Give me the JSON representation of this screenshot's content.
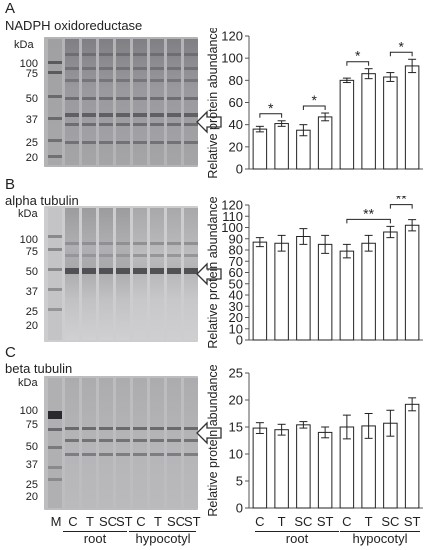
{
  "panels": [
    {
      "letter": "A",
      "protein": "NADPH oxidoreductase",
      "kda": "kDa",
      "markers": [
        "100",
        "75",
        "50",
        "37",
        "25",
        "20"
      ],
      "chart_data": {
        "type": "bar",
        "categories": [
          "C",
          "T",
          "SC",
          "ST",
          "C",
          "T",
          "SC",
          "ST"
        ],
        "values": [
          36,
          41,
          35,
          47,
          80,
          86,
          83,
          93
        ],
        "errors": [
          2.5,
          2.5,
          5,
          3.5,
          2,
          4.5,
          4,
          6
        ],
        "ylabel": "Relative protein abundance",
        "ylim": [
          0,
          120
        ],
        "yticks": [
          0,
          20,
          40,
          60,
          80,
          100,
          120
        ],
        "significance": [
          {
            "from": 0,
            "to": 1,
            "label": "*"
          },
          {
            "from": 2,
            "to": 3,
            "label": "*"
          },
          {
            "from": 4,
            "to": 5,
            "label": "*"
          },
          {
            "from": 6,
            "to": 7,
            "label": "*"
          }
        ]
      }
    },
    {
      "letter": "B",
      "protein": "alpha tubulin",
      "kda": "kDa",
      "markers": [
        "100",
        "75",
        "50",
        "37",
        "25",
        "20"
      ],
      "chart_data": {
        "type": "bar",
        "categories": [
          "C",
          "T",
          "SC",
          "ST",
          "C",
          "T",
          "SC",
          "ST"
        ],
        "values": [
          87,
          86,
          92,
          85,
          79,
          86,
          96,
          102
        ],
        "errors": [
          4,
          7,
          7,
          8,
          6,
          7,
          5,
          5
        ],
        "ylabel": "Relative protein abundance",
        "ylim": [
          0,
          120
        ],
        "yticks": [
          0,
          10,
          20,
          30,
          40,
          50,
          60,
          70,
          80,
          90,
          100,
          110,
          120
        ],
        "significance": [
          {
            "from": 4,
            "to": 6,
            "label": "**"
          },
          {
            "from": 6,
            "to": 7,
            "label": "**"
          }
        ]
      }
    },
    {
      "letter": "C",
      "protein": "beta tubulin",
      "kda": "kDa",
      "markers": [
        "100",
        "75",
        "50",
        "37",
        "25",
        "20"
      ],
      "chart_data": {
        "type": "bar",
        "categories": [
          "C",
          "T",
          "SC",
          "ST",
          "C",
          "T",
          "SC",
          "ST"
        ],
        "values": [
          14.8,
          14.5,
          15.4,
          14.0,
          15.0,
          15.2,
          15.7,
          19.2
        ],
        "errors": [
          1.0,
          1.0,
          0.6,
          1.0,
          2.2,
          2.3,
          2.4,
          1.2
        ],
        "ylabel": "Relative protein abundance",
        "ylim": [
          0,
          25
        ],
        "yticks": [
          0,
          5,
          10,
          15,
          20,
          25
        ],
        "significance": []
      }
    }
  ],
  "lane_labels": [
    "M",
    "C",
    "T",
    "SC",
    "ST",
    "C",
    "T",
    "SC",
    "ST"
  ],
  "chart_labels": [
    "C",
    "T",
    "SC",
    "ST",
    "C",
    "T",
    "SC",
    "ST"
  ],
  "groups": {
    "root": "root",
    "hypocotyl": "hypocotyl"
  }
}
